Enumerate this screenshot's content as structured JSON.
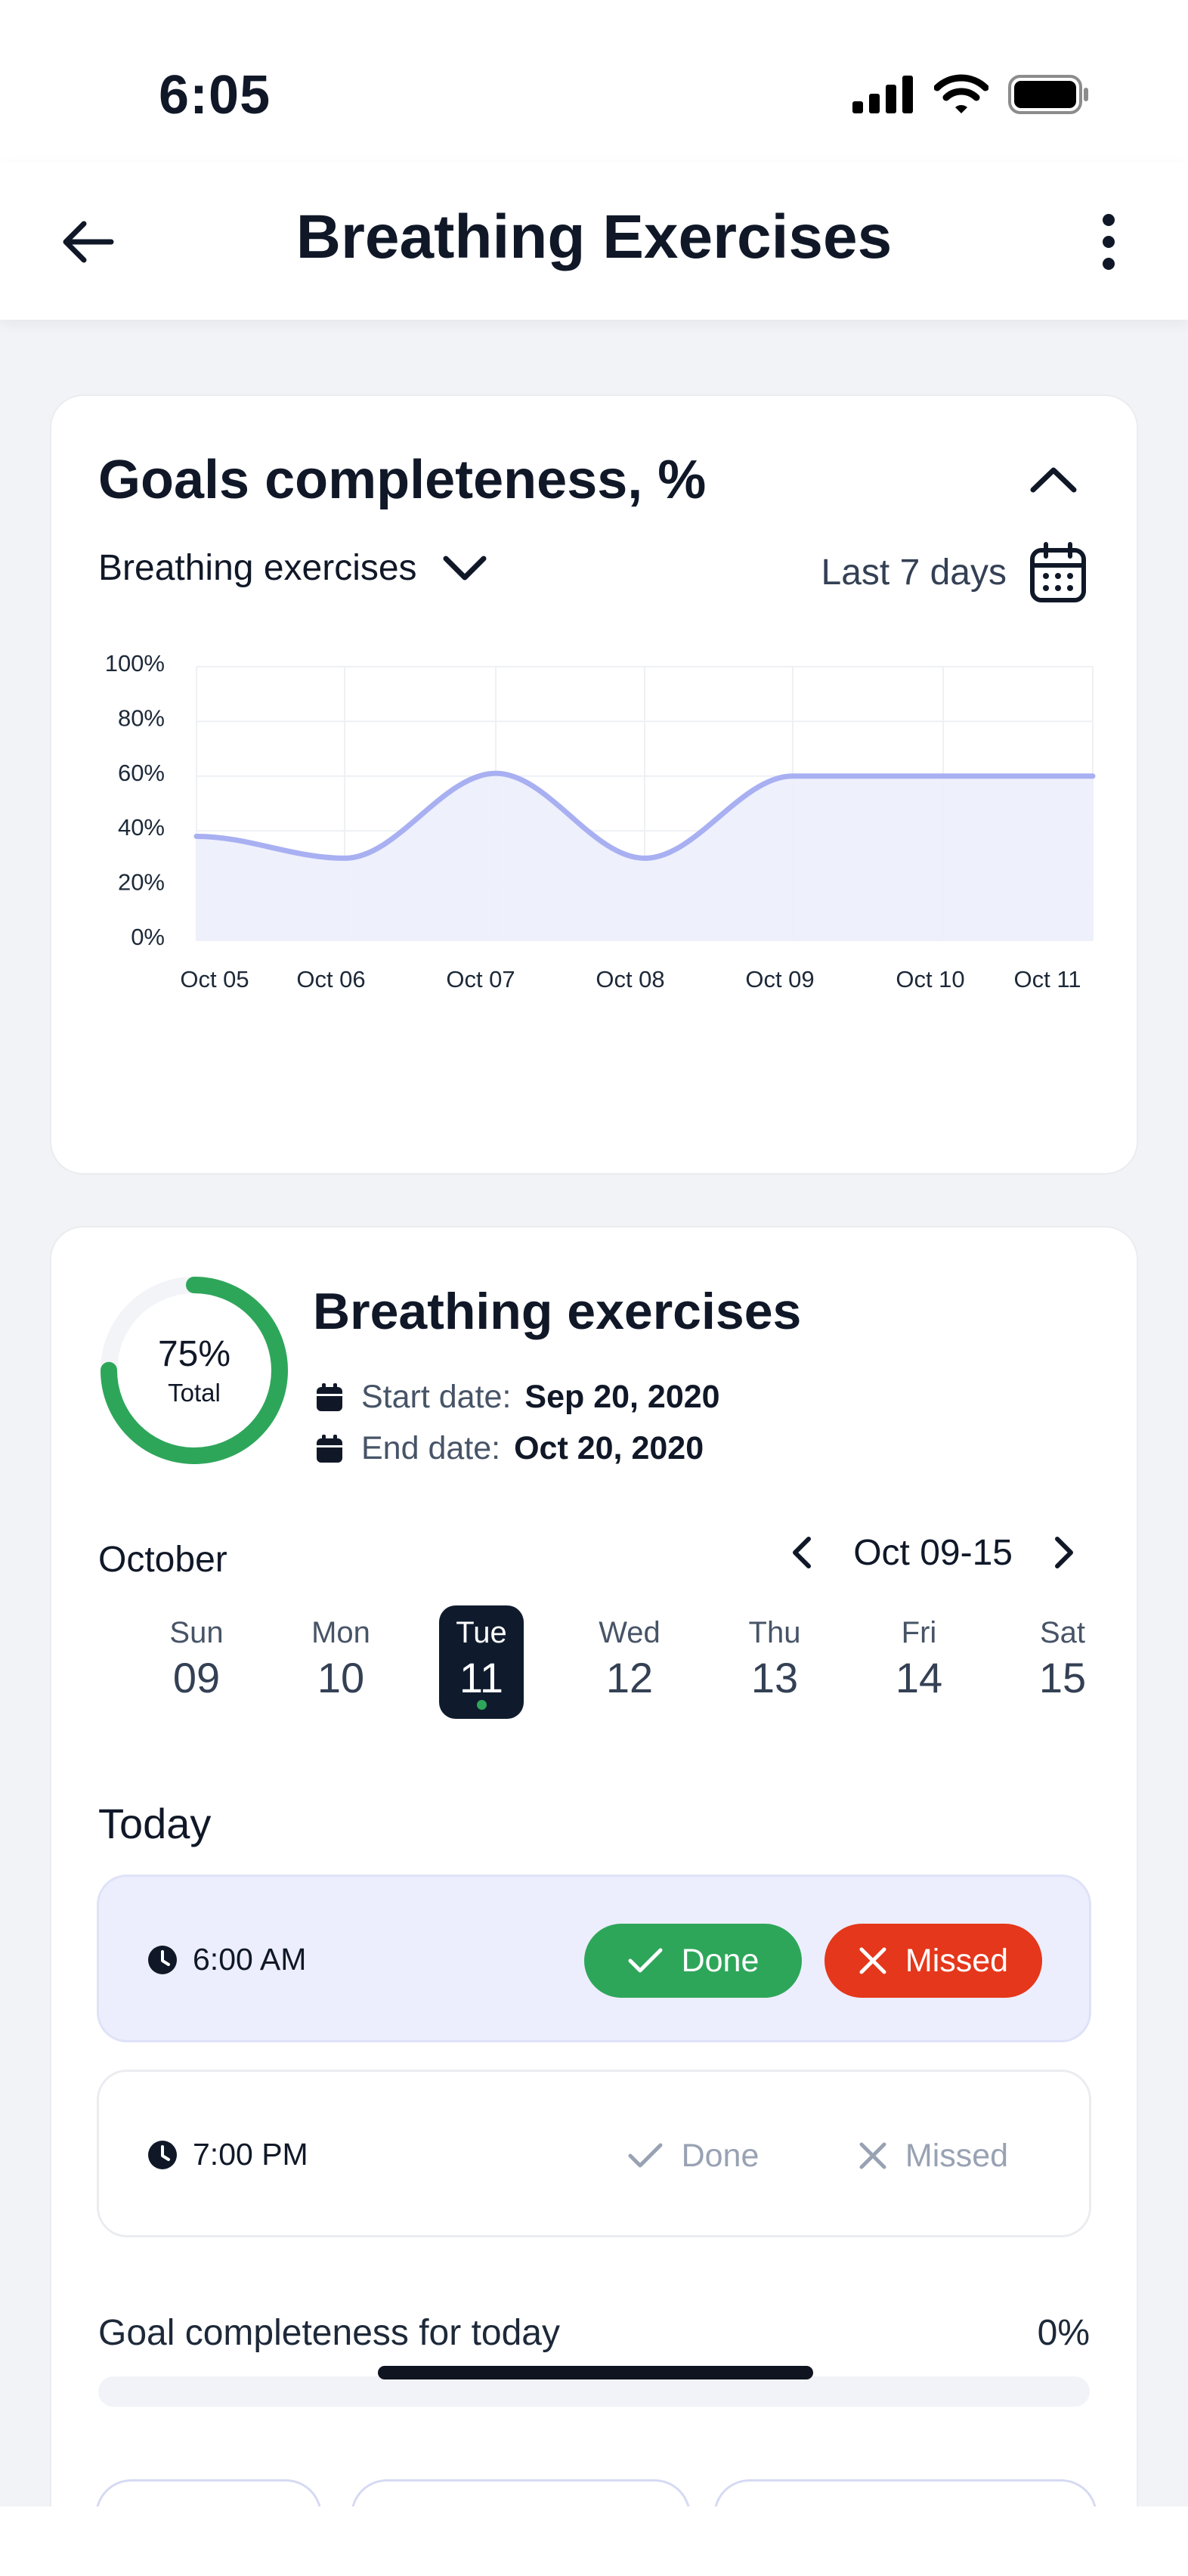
{
  "status_bar": {
    "time": "6:05"
  },
  "header": {
    "title": "Breathing Exercises"
  },
  "chart_card": {
    "title": "Goals completeness, %",
    "filter_label": "Breathing exercises",
    "range_label": "Last 7 days"
  },
  "chart_data": {
    "type": "area",
    "title": "Goals completeness, %",
    "categories": [
      "Oct 05",
      "Oct 06",
      "Oct 07",
      "Oct 08",
      "Oct 09",
      "Oct 10",
      "Oct 11"
    ],
    "y_ticks": [
      "0%",
      "20%",
      "40%",
      "60%",
      "80%",
      "100%"
    ],
    "ylim": [
      0,
      100
    ],
    "series": [
      {
        "values": [
          38,
          30,
          61,
          30,
          60,
          60,
          60
        ]
      }
    ],
    "grid": true,
    "line_color": "#a8b0f2",
    "fill_color": "#eceefc"
  },
  "goal": {
    "percent": "75%",
    "percent_value": 75,
    "percent_sub": "Total",
    "name": "Breathing exercises",
    "start_label": "Start date:",
    "start_value": "Sep 20, 2020",
    "end_label": "End date:",
    "end_value": "Oct 20, 2020",
    "ring_color": "#2ea65a"
  },
  "calendar": {
    "month": "October",
    "week_range": "Oct 09-15",
    "days": [
      {
        "name": "Sun",
        "date": "09"
      },
      {
        "name": "Mon",
        "date": "10"
      },
      {
        "name": "Tue",
        "date": "11"
      },
      {
        "name": "Wed",
        "date": "12"
      },
      {
        "name": "Thu",
        "date": "13"
      },
      {
        "name": "Fri",
        "date": "14"
      },
      {
        "name": "Sat",
        "date": "15"
      }
    ]
  },
  "today": {
    "label": "Today",
    "slots": [
      {
        "time": "6:00 AM",
        "done": "Done",
        "missed": "Missed"
      },
      {
        "time": "7:00 PM",
        "done": "Done",
        "missed": "Missed"
      }
    ],
    "goal_label": "Goal completeness for today",
    "goal_value": "0%",
    "goal_progress": 0
  },
  "colors": {
    "done": "#2ea65a",
    "missed": "#e5371b",
    "selected_day": "#0f1b2d"
  }
}
